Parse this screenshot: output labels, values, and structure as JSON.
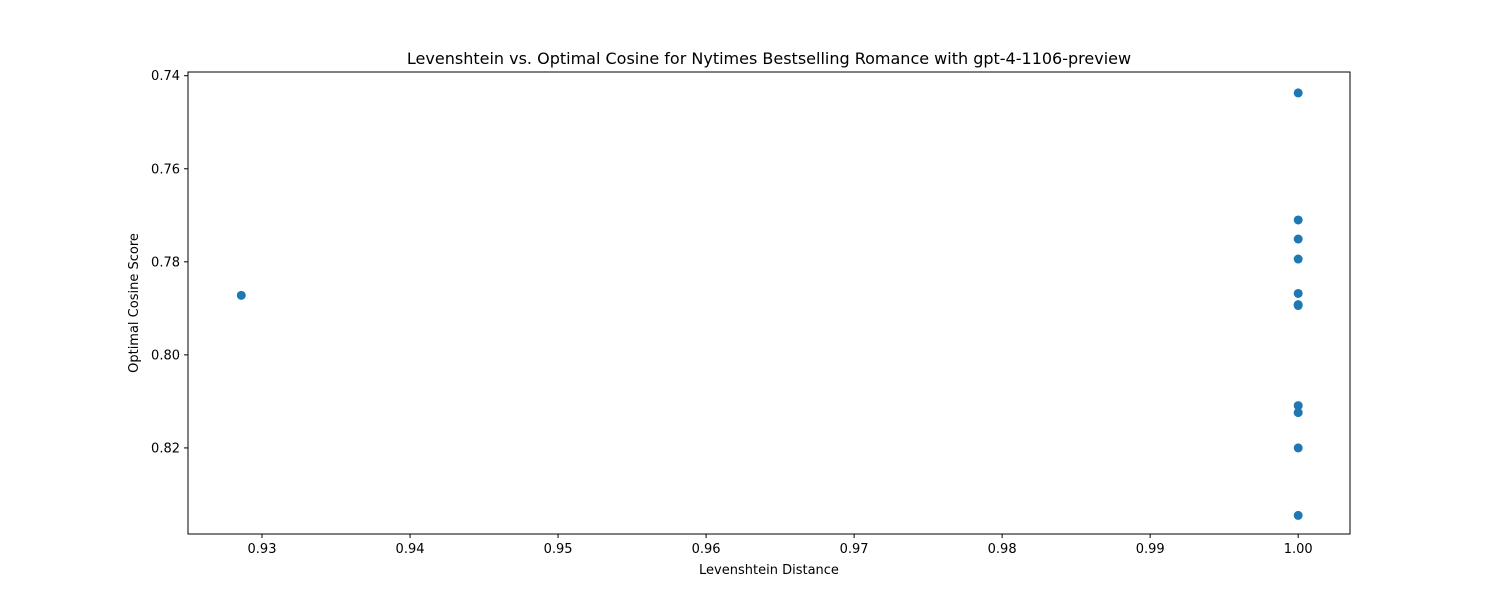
{
  "chart_data": {
    "type": "scatter",
    "title": "Levenshtein vs. Optimal Cosine for Nytimes Bestselling Romance with gpt-4-1106-preview",
    "xlabel": "Levenshtein Distance",
    "ylabel": "Optimal Cosine Score",
    "xlim": [
      0.925,
      1.0035
    ],
    "ylim": [
      0.7392,
      0.8385
    ],
    "y_inverted": true,
    "grid": false,
    "point_color": "#1f77b4",
    "x_ticks": [
      0.93,
      0.94,
      0.95,
      0.96,
      0.97,
      0.98,
      0.99,
      1.0
    ],
    "x_tick_labels": [
      "0.93",
      "0.94",
      "0.95",
      "0.96",
      "0.97",
      "0.98",
      "0.99",
      "1.00"
    ],
    "y_ticks": [
      0.74,
      0.76,
      0.78,
      0.8,
      0.82
    ],
    "y_tick_labels": [
      "0.74",
      "0.76",
      "0.78",
      "0.80",
      "0.82"
    ],
    "points": [
      {
        "x": 0.9286,
        "y": 0.7872
      },
      {
        "x": 1.0,
        "y": 0.7437
      },
      {
        "x": 1.0,
        "y": 0.771
      },
      {
        "x": 1.0,
        "y": 0.7751
      },
      {
        "x": 1.0,
        "y": 0.7794
      },
      {
        "x": 1.0,
        "y": 0.7868
      },
      {
        "x": 1.0,
        "y": 0.7892
      },
      {
        "x": 1.0,
        "y": 0.7894
      },
      {
        "x": 1.0,
        "y": 0.8109
      },
      {
        "x": 1.0,
        "y": 0.8124
      },
      {
        "x": 1.0,
        "y": 0.82
      },
      {
        "x": 1.0,
        "y": 0.8345
      }
    ]
  }
}
